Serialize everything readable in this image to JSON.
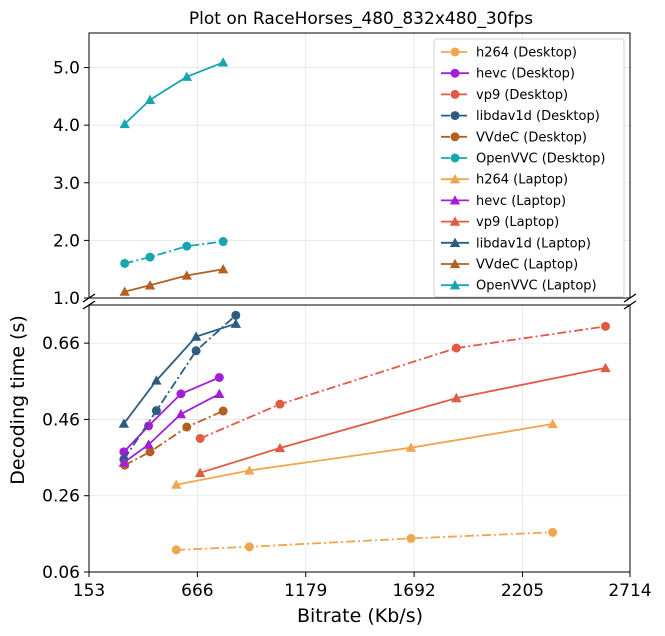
{
  "chart_data": {
    "type": "line",
    "title": "Plot on RaceHorses_480_832x480_30fps",
    "xlabel": "Bitrate (Kb/s)",
    "ylabel": "Decoding time (s)",
    "xlim": [
      153,
      2714
    ],
    "x_ticks": [
      "153",
      "666",
      "1179",
      "1692",
      "2205",
      "2714"
    ],
    "y_axis_break": true,
    "upper_panel": {
      "ylim": [
        1.0,
        5.6
      ],
      "y_ticks": [
        "1.0",
        "2.0",
        "3.0",
        "4.0",
        "5.0"
      ]
    },
    "lower_panel": {
      "ylim": [
        0.06,
        0.76
      ],
      "y_ticks": [
        "0.06",
        "0.26",
        "0.46",
        "0.66"
      ]
    },
    "grid": true,
    "legend_position": "top-right",
    "series": [
      {
        "name": "h264 (Desktop)",
        "color": "#f0a64e",
        "marker": "circle",
        "linestyle": "dashdot",
        "x": [
          566,
          912,
          1677,
          2348
        ],
        "y": [
          0.118,
          0.126,
          0.148,
          0.164
        ]
      },
      {
        "name": "hevc (Desktop)",
        "color": "#a31ed8",
        "marker": "circle",
        "linestyle": "solid",
        "x": [
          318,
          435,
          588,
          770
        ],
        "y": [
          0.375,
          0.443,
          0.527,
          0.57
        ]
      },
      {
        "name": "vp9 (Desktop)",
        "color": "#e05a45",
        "marker": "circle",
        "linestyle": "dashdot",
        "x": [
          679,
          1057,
          1892,
          2598
        ],
        "y": [
          0.41,
          0.5,
          0.647,
          0.704
        ]
      },
      {
        "name": "libdav1d (Desktop)",
        "color": "#2e5c80",
        "marker": "circle",
        "linestyle": "dashdot",
        "x": [
          318,
          472,
          660,
          848
        ],
        "y": [
          0.355,
          0.483,
          0.64,
          0.733
        ]
      },
      {
        "name": "VVdeC (Desktop)",
        "color": "#b35f22",
        "marker": "circle",
        "linestyle": "dashdot",
        "x": [
          322,
          442,
          616,
          788
        ],
        "y": [
          0.34,
          0.375,
          0.44,
          0.482
        ]
      },
      {
        "name": "OpenVVC (Desktop)",
        "color": "#17a6b0",
        "marker": "circle",
        "linestyle": "dashdot",
        "x": [
          322,
          442,
          616,
          788
        ],
        "y": [
          1.6,
          1.71,
          1.9,
          1.98
        ]
      },
      {
        "name": "h264 (Laptop)",
        "color": "#f0a64e",
        "marker": "triangle",
        "linestyle": "solid",
        "x": [
          566,
          912,
          1677,
          2348
        ],
        "y": [
          0.289,
          0.326,
          0.386,
          0.448
        ]
      },
      {
        "name": "hevc (Laptop)",
        "color": "#a31ed8",
        "marker": "triangle",
        "linestyle": "solid",
        "x": [
          318,
          435,
          588,
          770
        ],
        "y": [
          0.347,
          0.394,
          0.474,
          0.527
        ]
      },
      {
        "name": "vp9 (Laptop)",
        "color": "#e05a45",
        "marker": "triangle",
        "linestyle": "solid",
        "x": [
          679,
          1057,
          1892,
          2598
        ],
        "y": [
          0.32,
          0.385,
          0.516,
          0.595
        ]
      },
      {
        "name": "libdav1d (Laptop)",
        "color": "#2e5c80",
        "marker": "triangle",
        "linestyle": "solid",
        "x": [
          318,
          472,
          660,
          848
        ],
        "y": [
          0.449,
          0.562,
          0.677,
          0.711
        ]
      },
      {
        "name": "VVdeC (Laptop)",
        "color": "#b35f22",
        "marker": "triangle",
        "linestyle": "solid",
        "x": [
          322,
          442,
          616,
          788
        ],
        "y": [
          1.11,
          1.22,
          1.39,
          1.5
        ]
      },
      {
        "name": "OpenVVC (Laptop)",
        "color": "#17a6b0",
        "marker": "triangle",
        "linestyle": "solid",
        "x": [
          322,
          442,
          616,
          788
        ],
        "y": [
          4.02,
          4.44,
          4.84,
          5.09
        ]
      }
    ]
  }
}
